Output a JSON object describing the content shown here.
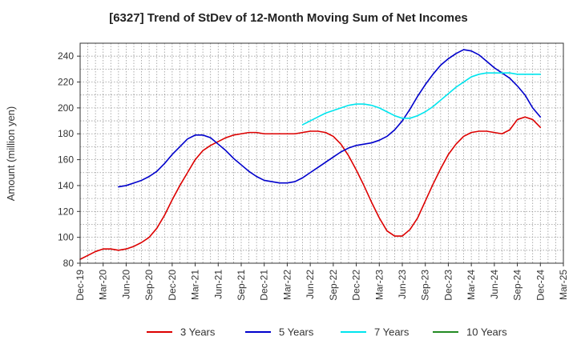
{
  "chart_data": {
    "type": "line",
    "title": "[6327]  Trend of StDev of 12-Month Moving Sum of Net Incomes",
    "xlabel": "",
    "ylabel": "Amount (million yen)",
    "ylim": [
      80,
      250
    ],
    "yticks": [
      80,
      100,
      120,
      140,
      160,
      180,
      200,
      220,
      240
    ],
    "x_tick_labels": [
      "Dec-19",
      "Mar-20",
      "Jun-20",
      "Sep-20",
      "Dec-20",
      "Mar-21",
      "Jun-21",
      "Sep-21",
      "Dec-21",
      "Mar-22",
      "Jun-22",
      "Sep-22",
      "Dec-22",
      "Mar-23",
      "Jun-23",
      "Sep-23",
      "Dec-23",
      "Mar-24",
      "Jun-24",
      "Sep-24",
      "Dec-24",
      "Mar-25"
    ],
    "x_range": [
      "2019-12",
      "2025-03"
    ],
    "grid": true,
    "legend_position": "bottom",
    "series": [
      {
        "name": "3 Years",
        "color": "#dd0000",
        "x": [
          "2019-12",
          "2020-01",
          "2020-02",
          "2020-03",
          "2020-04",
          "2020-05",
          "2020-06",
          "2020-07",
          "2020-08",
          "2020-09",
          "2020-10",
          "2020-11",
          "2020-12",
          "2021-01",
          "2021-02",
          "2021-03",
          "2021-04",
          "2021-05",
          "2021-06",
          "2021-07",
          "2021-08",
          "2021-09",
          "2021-10",
          "2021-11",
          "2021-12",
          "2022-01",
          "2022-02",
          "2022-03",
          "2022-04",
          "2022-05",
          "2022-06",
          "2022-07",
          "2022-08",
          "2022-09",
          "2022-10",
          "2022-11",
          "2022-12",
          "2023-01",
          "2023-02",
          "2023-03",
          "2023-04",
          "2023-05",
          "2023-06",
          "2023-07",
          "2023-08",
          "2023-09",
          "2023-10",
          "2023-11",
          "2023-12",
          "2024-01",
          "2024-02",
          "2024-03",
          "2024-04",
          "2024-05",
          "2024-06",
          "2024-07",
          "2024-08",
          "2024-09",
          "2024-10",
          "2024-11",
          "2024-12"
        ],
        "values": [
          83,
          86,
          89,
          91,
          91,
          90,
          91,
          93,
          96,
          100,
          107,
          117,
          129,
          140,
          150,
          160,
          167,
          171,
          174,
          177,
          179,
          180,
          181,
          181,
          180,
          180,
          180,
          180,
          180,
          181,
          182,
          182,
          181,
          178,
          172,
          163,
          152,
          140,
          127,
          115,
          105,
          101,
          101,
          106,
          115,
          128,
          141,
          153,
          164,
          172,
          178,
          181,
          182,
          182,
          181,
          180,
          183,
          191,
          193,
          191,
          185
        ]
      },
      {
        "name": "5 Years",
        "color": "#0000cc",
        "x": [
          "2020-05",
          "2020-06",
          "2020-07",
          "2020-08",
          "2020-09",
          "2020-10",
          "2020-11",
          "2020-12",
          "2021-01",
          "2021-02",
          "2021-03",
          "2021-04",
          "2021-05",
          "2021-06",
          "2021-07",
          "2021-08",
          "2021-09",
          "2021-10",
          "2021-11",
          "2021-12",
          "2022-01",
          "2022-02",
          "2022-03",
          "2022-04",
          "2022-05",
          "2022-06",
          "2022-07",
          "2022-08",
          "2022-09",
          "2022-10",
          "2022-11",
          "2022-12",
          "2023-01",
          "2023-02",
          "2023-03",
          "2023-04",
          "2023-05",
          "2023-06",
          "2023-07",
          "2023-08",
          "2023-09",
          "2023-10",
          "2023-11",
          "2023-12",
          "2024-01",
          "2024-02",
          "2024-03",
          "2024-04",
          "2024-05",
          "2024-06",
          "2024-07",
          "2024-08",
          "2024-09",
          "2024-10",
          "2024-11",
          "2024-12"
        ],
        "values": [
          139,
          140,
          142,
          144,
          147,
          151,
          157,
          164,
          170,
          176,
          179,
          179,
          177,
          172,
          167,
          161,
          156,
          151,
          147,
          144,
          143,
          142,
          142,
          143,
          146,
          150,
          154,
          158,
          162,
          166,
          169,
          171,
          172,
          173,
          175,
          178,
          183,
          190,
          199,
          209,
          218,
          226,
          233,
          238,
          242,
          245,
          244,
          241,
          236,
          231,
          227,
          223,
          217,
          210,
          200,
          193
        ]
      },
      {
        "name": "7 Years",
        "color": "#00e5ee",
        "x": [
          "2022-05",
          "2022-06",
          "2022-07",
          "2022-08",
          "2022-09",
          "2022-10",
          "2022-11",
          "2022-12",
          "2023-01",
          "2023-02",
          "2023-03",
          "2023-04",
          "2023-05",
          "2023-06",
          "2023-07",
          "2023-08",
          "2023-09",
          "2023-10",
          "2023-11",
          "2023-12",
          "2024-01",
          "2024-02",
          "2024-03",
          "2024-04",
          "2024-05",
          "2024-06",
          "2024-07",
          "2024-08",
          "2024-09",
          "2024-10",
          "2024-11",
          "2024-12"
        ],
        "values": [
          187,
          190,
          193,
          196,
          198,
          200,
          202,
          203,
          203,
          202,
          200,
          197,
          194,
          192,
          192,
          194,
          197,
          201,
          206,
          211,
          216,
          220,
          224,
          226,
          227,
          227,
          227,
          227,
          226,
          226,
          226,
          226
        ]
      },
      {
        "name": "10 Years",
        "color": "#228b22",
        "x": [],
        "values": []
      }
    ]
  }
}
